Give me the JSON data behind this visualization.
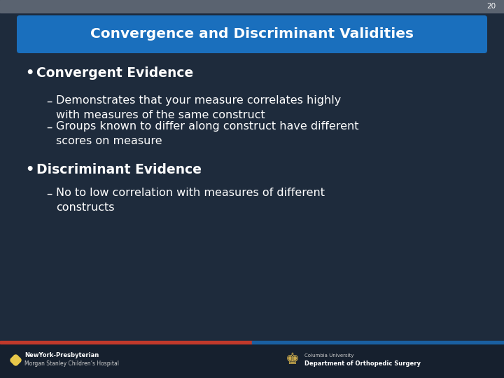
{
  "slide_number": "20",
  "title": "Convergence and Discriminant Validities",
  "background_color": "#1e2b3c",
  "title_box_color": "#1a6fbd",
  "title_text_color": "#ffffff",
  "content_text_color": "#ffffff",
  "bullet1_header": "Convergent Evidence",
  "bullet1_sub1": "Demonstrates that your measure correlates highly\nwith measures of the same construct",
  "bullet1_sub2": "Groups known to differ along construct have different\nscores on measure",
  "bullet2_header": "Discriminant Evidence",
  "bullet2_sub1": "No to low correlation with measures of different\nconstructs",
  "footer_left1": "NewYork-Presbyterian",
  "footer_left2": "Morgan Stanley Children’s Hospital",
  "footer_right1": "Columbia University",
  "footer_right2": "Department of Orthopedic Surgery",
  "red_bar_color": "#c0392b",
  "blue_bar_color": "#1a5fa0",
  "footer_bg_color": "#16202e",
  "top_bar_color": "#5a6370"
}
